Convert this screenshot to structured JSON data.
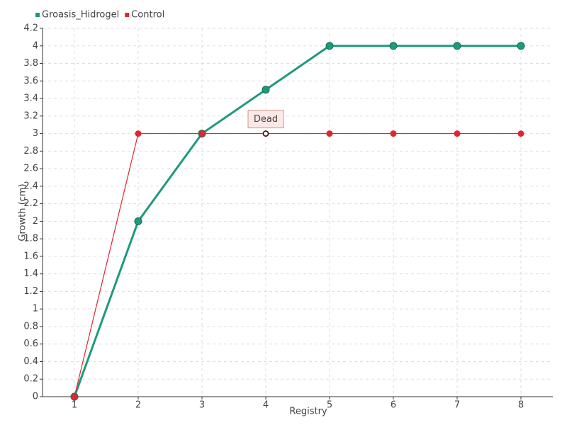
{
  "chart_data": {
    "type": "line",
    "x": [
      1,
      2,
      3,
      4,
      5,
      6,
      7,
      8
    ],
    "xlabel": "Registry",
    "ylabel": "Growth (cm)",
    "xlim": [
      0.5,
      8.5
    ],
    "xticks": [
      1,
      2,
      3,
      4,
      5,
      6,
      7,
      8
    ],
    "ylim": [
      0,
      4.2
    ],
    "yticks": [
      0,
      0.2,
      0.4,
      0.6,
      0.8,
      1,
      1.2,
      1.4,
      1.6,
      1.8,
      2,
      2.2,
      2.4,
      2.6,
      2.8,
      3,
      3.2,
      3.4,
      3.6,
      3.8,
      4,
      4.2
    ],
    "grid": true,
    "legend": "top-left",
    "series": [
      {
        "name": "Groasis_Hidrogel",
        "color": "#1e9a7c",
        "values": [
          0,
          2,
          3,
          3.5,
          4,
          4,
          4,
          4
        ]
      },
      {
        "name": "Control",
        "color": "#e0262f",
        "values": [
          0,
          3,
          3,
          3,
          3,
          3,
          3,
          3
        ]
      }
    ],
    "annotations": [
      {
        "text": "Dead",
        "x": 4,
        "y": 3
      }
    ]
  }
}
